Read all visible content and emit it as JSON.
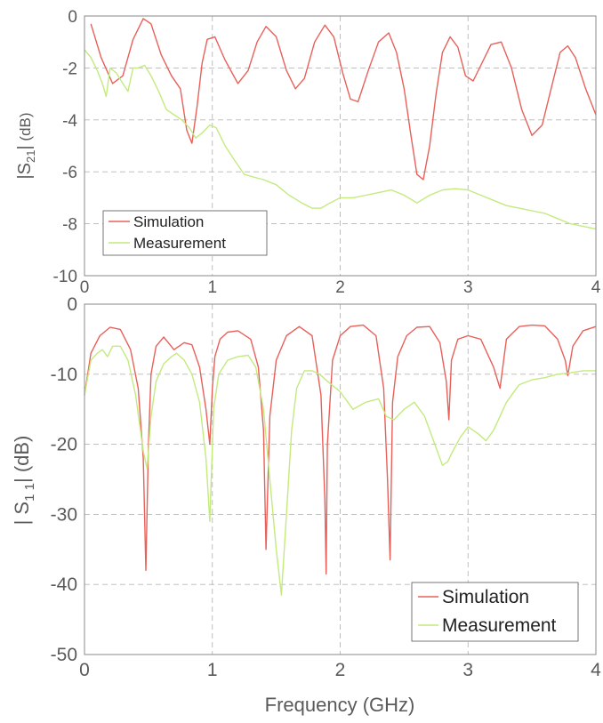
{
  "figure": {
    "xlabel": "Frequency  (GHz)"
  },
  "colors": {
    "simulation": "#e8605a",
    "measurement": "#c4ea7e",
    "grid": "#b8b8b8",
    "axis": "#8a8a8a"
  },
  "chart_data": [
    {
      "type": "line",
      "ylabel": "|S21| (dB)",
      "xlim": [
        0,
        4
      ],
      "ylim": [
        -10,
        0
      ],
      "xticks": [
        "0",
        "1",
        "2",
        "3",
        "4"
      ],
      "yticks": [
        "0",
        "-2",
        "-4",
        "-6",
        "-8",
        "-10"
      ],
      "grid": true,
      "legend_position": "bottom-left",
      "series": [
        {
          "name": "Simulation",
          "x": [
            0.05,
            0.13,
            0.22,
            0.3,
            0.38,
            0.46,
            0.52,
            0.6,
            0.68,
            0.75,
            0.8,
            0.84,
            0.88,
            0.92,
            0.96,
            1.02,
            1.1,
            1.2,
            1.28,
            1.35,
            1.42,
            1.5,
            1.58,
            1.65,
            1.72,
            1.8,
            1.88,
            1.95,
            2.02,
            2.08,
            2.14,
            2.22,
            2.3,
            2.38,
            2.44,
            2.5,
            2.55,
            2.6,
            2.65,
            2.7,
            2.75,
            2.8,
            2.86,
            2.92,
            2.98,
            3.04,
            3.1,
            3.18,
            3.26,
            3.34,
            3.42,
            3.5,
            3.58,
            3.66,
            3.72,
            3.78,
            3.84,
            3.92,
            4.0
          ],
          "values": [
            -0.3,
            -1.6,
            -2.6,
            -2.3,
            -0.9,
            -0.1,
            -0.3,
            -1.5,
            -2.3,
            -2.8,
            -4.4,
            -4.9,
            -3.5,
            -1.8,
            -0.9,
            -0.8,
            -1.7,
            -2.6,
            -2.1,
            -1.0,
            -0.4,
            -0.8,
            -2.1,
            -2.8,
            -2.4,
            -1.0,
            -0.35,
            -0.8,
            -2.2,
            -3.2,
            -3.3,
            -2.1,
            -1.0,
            -0.65,
            -1.4,
            -2.8,
            -4.5,
            -6.1,
            -6.3,
            -5.0,
            -3.0,
            -1.4,
            -0.8,
            -1.2,
            -2.3,
            -2.5,
            -1.9,
            -1.1,
            -1.0,
            -2.0,
            -3.6,
            -4.6,
            -4.2,
            -2.6,
            -1.4,
            -1.15,
            -1.6,
            -2.8,
            -3.8
          ]
        },
        {
          "name": "Measurement",
          "x": [
            0.0,
            0.05,
            0.1,
            0.14,
            0.17,
            0.2,
            0.25,
            0.3,
            0.34,
            0.38,
            0.42,
            0.47,
            0.52,
            0.58,
            0.64,
            0.7,
            0.76,
            0.82,
            0.87,
            0.92,
            0.98,
            1.03,
            1.1,
            1.18,
            1.25,
            1.32,
            1.4,
            1.5,
            1.6,
            1.7,
            1.78,
            1.85,
            1.92,
            2.0,
            2.1,
            2.2,
            2.3,
            2.4,
            2.5,
            2.6,
            2.7,
            2.8,
            2.9,
            3.0,
            3.1,
            3.2,
            3.3,
            3.4,
            3.5,
            3.6,
            3.7,
            3.8,
            3.9,
            4.0
          ],
          "values": [
            -1.3,
            -1.6,
            -2.1,
            -2.6,
            -3.1,
            -2.0,
            -2.2,
            -2.6,
            -2.9,
            -2.0,
            -2.0,
            -1.9,
            -2.3,
            -2.9,
            -3.6,
            -3.8,
            -4.0,
            -4.3,
            -4.7,
            -4.5,
            -4.2,
            -4.3,
            -5.0,
            -5.6,
            -6.1,
            -6.2,
            -6.3,
            -6.5,
            -6.9,
            -7.2,
            -7.4,
            -7.4,
            -7.2,
            -7.0,
            -7.0,
            -6.9,
            -6.8,
            -6.7,
            -6.9,
            -7.2,
            -6.9,
            -6.7,
            -6.65,
            -6.7,
            -6.9,
            -7.1,
            -7.3,
            -7.4,
            -7.5,
            -7.6,
            -7.8,
            -8.0,
            -8.1,
            -8.2
          ]
        }
      ]
    },
    {
      "type": "line",
      "ylabel": "|S11| (dB)",
      "xlabel": "Frequency  (GHz)",
      "xlim": [
        0,
        4
      ],
      "ylim": [
        -50,
        0
      ],
      "xticks": [
        "0",
        "1",
        "2",
        "3",
        "4"
      ],
      "yticks": [
        "0",
        "-10",
        "-20",
        "-30",
        "-40",
        "-50"
      ],
      "grid": true,
      "legend_position": "bottom-right",
      "series": [
        {
          "name": "Simulation",
          "x": [
            0.0,
            0.05,
            0.12,
            0.2,
            0.28,
            0.36,
            0.42,
            0.46,
            0.48,
            0.5,
            0.52,
            0.56,
            0.62,
            0.7,
            0.78,
            0.84,
            0.9,
            0.95,
            0.98,
            1.0,
            1.02,
            1.06,
            1.12,
            1.2,
            1.3,
            1.36,
            1.4,
            1.42,
            1.45,
            1.5,
            1.58,
            1.68,
            1.78,
            1.85,
            1.88,
            1.89,
            1.9,
            1.94,
            2.0,
            2.08,
            2.18,
            2.28,
            2.34,
            2.37,
            2.39,
            2.41,
            2.45,
            2.52,
            2.6,
            2.7,
            2.78,
            2.83,
            2.85,
            2.87,
            2.92,
            3.0,
            3.1,
            3.2,
            3.25,
            3.3,
            3.4,
            3.5,
            3.6,
            3.7,
            3.76,
            3.78,
            3.82,
            3.9,
            4.0
          ],
          "values": [
            -13,
            -7,
            -4.5,
            -3.3,
            -3.6,
            -6.5,
            -12,
            -22,
            -38,
            -20,
            -10,
            -6,
            -4.7,
            -6.5,
            -5.5,
            -5.8,
            -9,
            -15,
            -20,
            -12,
            -7.5,
            -5,
            -4,
            -3.8,
            -5,
            -9,
            -18,
            -35,
            -16,
            -8,
            -4.5,
            -3.2,
            -4.5,
            -13,
            -28,
            -38.5,
            -20,
            -8,
            -4.5,
            -3.2,
            -3.0,
            -4.5,
            -12,
            -25,
            -36.5,
            -14,
            -7.5,
            -4.5,
            -3.3,
            -3.2,
            -5.5,
            -11,
            -16.5,
            -8,
            -5,
            -4.5,
            -5,
            -9,
            -12,
            -5,
            -3.2,
            -3.0,
            -3.1,
            -5,
            -8,
            -10.2,
            -6,
            -3.8,
            -3.2
          ]
        },
        {
          "name": "Measurement",
          "x": [
            0.0,
            0.05,
            0.1,
            0.14,
            0.18,
            0.22,
            0.28,
            0.34,
            0.4,
            0.46,
            0.49,
            0.52,
            0.56,
            0.62,
            0.68,
            0.72,
            0.78,
            0.84,
            0.9,
            0.95,
            0.98,
            1.01,
            1.05,
            1.12,
            1.2,
            1.28,
            1.34,
            1.4,
            1.45,
            1.5,
            1.54,
            1.58,
            1.62,
            1.66,
            1.72,
            1.78,
            1.84,
            1.9,
            2.0,
            2.1,
            2.2,
            2.3,
            2.36,
            2.42,
            2.5,
            2.58,
            2.66,
            2.74,
            2.8,
            2.84,
            2.88,
            2.94,
            3.0,
            3.08,
            3.14,
            3.2,
            3.3,
            3.4,
            3.5,
            3.6,
            3.7,
            3.8,
            3.9,
            4.0
          ],
          "values": [
            -13,
            -8,
            -7,
            -6.5,
            -7.5,
            -6,
            -6,
            -8,
            -13,
            -21,
            -23.5,
            -16,
            -11,
            -8.5,
            -7.5,
            -7,
            -8,
            -10,
            -14,
            -22,
            -31,
            -15,
            -10,
            -8,
            -7.5,
            -7.3,
            -9,
            -15,
            -25,
            -35,
            -41.5,
            -30,
            -18,
            -12,
            -9.5,
            -9.5,
            -10,
            -11,
            -12.5,
            -15,
            -14,
            -13.5,
            -16,
            -16.5,
            -15,
            -14,
            -16,
            -20,
            -23,
            -22.5,
            -21,
            -19,
            -17.5,
            -18.5,
            -19.5,
            -18,
            -14,
            -11.5,
            -10.8,
            -10.5,
            -10,
            -9.8,
            -9.5,
            -9.5
          ]
        }
      ]
    }
  ],
  "panels": [
    {
      "ylabel_parts": {
        "bar1": "|",
        "s": "S",
        "sub": "21",
        "bar2": "|",
        "unit": " (dB)"
      },
      "legend": [
        "Simulation",
        "Measurement"
      ]
    },
    {
      "ylabel_parts": {
        "bar1": "| ",
        "s": "S",
        "sub": "1 1",
        "bar2": "|",
        "unit": "  (dB)"
      },
      "legend": [
        "Simulation",
        "Measurement"
      ]
    }
  ]
}
